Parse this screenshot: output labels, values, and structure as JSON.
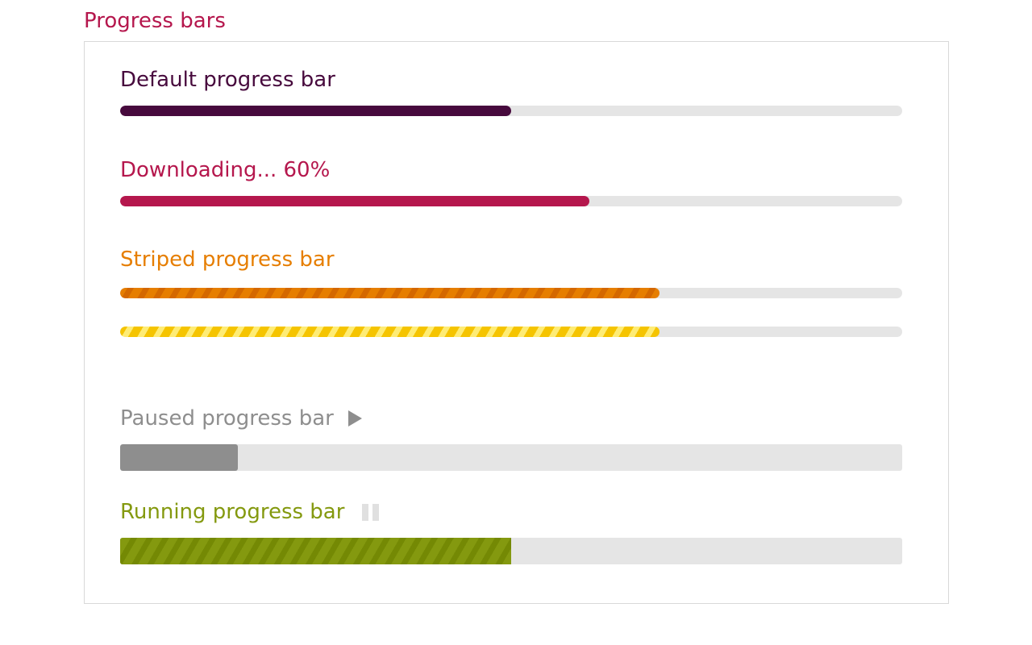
{
  "title": "Progress bars",
  "bars": [
    {
      "label": "Default progress bar",
      "value": 50,
      "color": "#470a3d"
    },
    {
      "label": "Downloading... 60%",
      "value": 60,
      "color": "#b5174d"
    },
    {
      "label": "Striped progress bar",
      "value": 69,
      "color": "#e67e00"
    },
    {
      "value": 69,
      "color": "#f5c400"
    },
    {
      "label": "Paused progress bar",
      "value": 15,
      "color": "#8e8e8e",
      "icon": "play-icon"
    },
    {
      "label": "Running progress bar",
      "value": 50,
      "color": "#84990f",
      "icon": "pause-icon"
    }
  ]
}
